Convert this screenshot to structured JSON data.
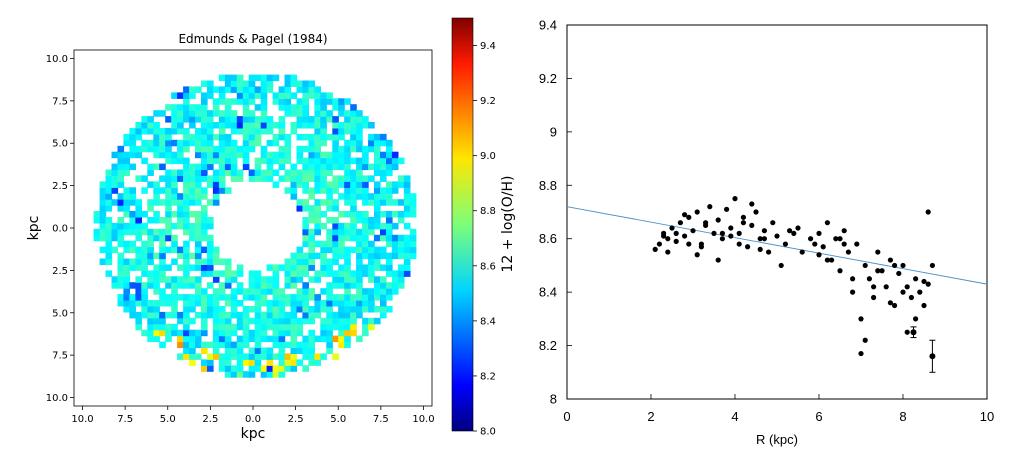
{
  "chart_data": [
    {
      "type": "heatmap",
      "title": "Edmunds & Pagel (1984)",
      "xlabel": "kpc",
      "ylabel": "kpc",
      "xticks": [
        "10.0",
        "7.5",
        "5.0",
        "2.5",
        "0.0",
        "2.5",
        "5.0",
        "7.5",
        "10.0"
      ],
      "yticks": [
        "10.0",
        "7.5",
        "5.0",
        "2.5",
        "0.0",
        "2.5",
        "5.0",
        "7.5",
        "10.0"
      ],
      "xlim": [
        -10.5,
        10.5
      ],
      "ylim": [
        -10.5,
        10.5
      ],
      "colormap": "jet",
      "colorbar": {
        "label": "12 + log(O/H)",
        "range": [
          8.0,
          9.5
        ],
        "ticks": [
          "8.0",
          "8.2",
          "8.4",
          "8.6",
          "8.8",
          "9.0",
          "9.2",
          "9.4"
        ]
      },
      "map_description": "ring of metallicity values between ~2.5 and ~9.5 kpc, mostly 8.5-8.7, with a hole at the center",
      "typical_value": 8.6,
      "value_range": [
        8.0,
        9.5
      ]
    },
    {
      "type": "scatter",
      "xlabel": "R (kpc)",
      "ylabel": "",
      "xlim": [
        0,
        10
      ],
      "ylim": [
        8,
        9.4
      ],
      "xticks": [
        "0",
        "2",
        "4",
        "6",
        "8",
        "10"
      ],
      "yticks": [
        "8",
        "8.2",
        "8.4",
        "8.6",
        "8.8",
        "9",
        "9.2",
        "9.4"
      ],
      "fit_line": {
        "x": [
          0,
          10
        ],
        "y": [
          8.72,
          8.43
        ],
        "color": "#4a90c8"
      },
      "point_color": "#000000",
      "series": [
        {
          "x": [
            2.1,
            2.2,
            2.3,
            2.4,
            2.5,
            2.6,
            2.7,
            2.8,
            2.9,
            3.0,
            3.1,
            3.2,
            3.3,
            3.4,
            3.5,
            3.6,
            3.7,
            3.8,
            3.9,
            4.0,
            4.1,
            4.2,
            4.3,
            4.4,
            4.5,
            4.6,
            4.7,
            4.8,
            4.9,
            5.0,
            5.2,
            5.4,
            5.6,
            5.8,
            6.0,
            6.1,
            6.2,
            6.3,
            6.4,
            6.5,
            6.6,
            6.7,
            6.8,
            6.9,
            7.0,
            7.1,
            7.2,
            7.3,
            7.4,
            7.5,
            7.6,
            7.7,
            7.8,
            7.9,
            8.0,
            8.1,
            8.2,
            8.3,
            8.4,
            8.5,
            8.6,
            8.7,
            2.4,
            2.6,
            2.9,
            3.1,
            3.3,
            3.6,
            3.9,
            4.1,
            4.4,
            4.7,
            5.1,
            5.5,
            5.9,
            6.2,
            6.5,
            6.8,
            7.1,
            7.4,
            7.7,
            8.0,
            8.3,
            8.6,
            2.3,
            2.8,
            3.2,
            3.7,
            4.2,
            4.6,
            5.3,
            6.0,
            6.6,
            7.0,
            7.3,
            7.8,
            8.1,
            8.5
          ],
          "y": [
            8.56,
            8.58,
            8.62,
            8.6,
            8.64,
            8.59,
            8.66,
            8.61,
            8.68,
            8.63,
            8.7,
            8.58,
            8.65,
            8.72,
            8.62,
            8.67,
            8.6,
            8.71,
            8.64,
            8.75,
            8.62,
            8.68,
            8.57,
            8.65,
            8.7,
            8.6,
            8.63,
            8.55,
            8.66,
            8.61,
            8.58,
            8.62,
            8.55,
            8.6,
            8.62,
            8.57,
            8.66,
            8.52,
            8.6,
            8.48,
            8.63,
            8.55,
            8.4,
            8.58,
            8.3,
            8.5,
            8.45,
            8.38,
            8.55,
            8.48,
            8.42,
            8.52,
            8.35,
            8.47,
            8.5,
            8.42,
            8.38,
            8.45,
            8.4,
            8.44,
            8.7,
            8.5,
            8.55,
            8.62,
            8.58,
            8.54,
            8.66,
            8.52,
            8.61,
            8.58,
            8.73,
            8.6,
            8.5,
            8.64,
            8.58,
            8.52,
            8.6,
            8.45,
            8.22,
            8.48,
            8.36,
            8.4,
            8.3,
            8.43,
            8.61,
            8.69,
            8.57,
            8.62,
            8.66,
            8.56,
            8.63,
            8.54,
            8.58,
            8.17,
            8.42,
            8.5,
            8.25,
            8.35
          ]
        },
        {
          "name": "",
          "x": [
            8.7,
            8.25
          ],
          "y": [
            8.16,
            8.25
          ],
          "yerr": [
            0.06,
            0.02
          ],
          "marker": "circle"
        }
      ]
    }
  ]
}
